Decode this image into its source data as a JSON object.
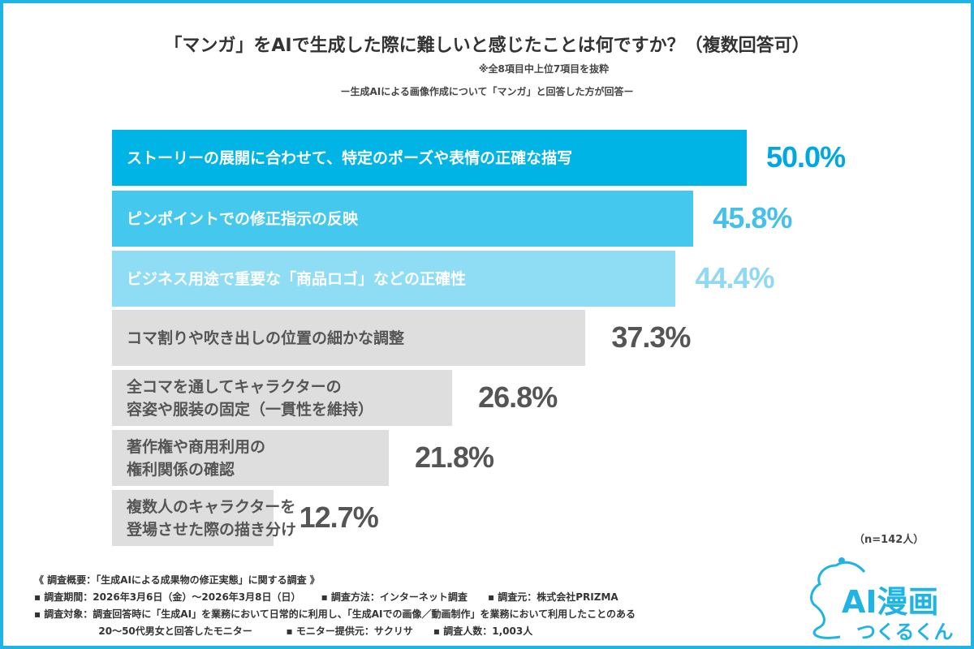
{
  "title": "「マンガ」をAIで生成した際に難しいと感じたことは何ですか？（複数回答可）",
  "subtitle_note": "※全8項目中上位7項目を抜粋",
  "subtitle_target": "ー生成AIによる画像作成について「マンガ」と回答した方が回答ー",
  "sample_size": "（n=142人）",
  "chart_data": {
    "type": "bar",
    "orientation": "horizontal",
    "title": "「マンガ」をAIで生成した際に難しいと感じたことは何ですか？（複数回答可）",
    "unit": "%",
    "xlim": [
      0,
      50
    ],
    "grid": false,
    "categories": [
      "ストーリーの展開に合わせて、特定のポーズや表情の正確な描写",
      "ピンポイントでの修正指示の反映",
      "ビジネス用途で重要な「商品ロゴ」などの正確性",
      "コマ割りや吹き出しの位置の細かな調整",
      "全コマを通してキャラクターの\n容姿や服装の固定（一貫性を維持）",
      "著作権や商用利用の\n権利関係の確認",
      "複数人のキャラクターを\n登場させた際の描き分け"
    ],
    "values": [
      50.0,
      45.8,
      44.4,
      37.3,
      26.8,
      21.8,
      12.7
    ],
    "labels": [
      "50.0%",
      "45.8%",
      "44.4%",
      "37.3%",
      "26.8%",
      "21.8%",
      "12.7%"
    ],
    "bar_colors": [
      "#00b4e6",
      "#45c8ee",
      "#8fdcf5",
      "#dedede",
      "#dedede",
      "#dedede",
      "#dedede"
    ],
    "text_colors": [
      "#ffffff",
      "#ffffff",
      "#ffffff",
      "#555555",
      "#555555",
      "#555555",
      "#555555"
    ],
    "value_colors": [
      "#00a8e0",
      "#45c0ea",
      "#90d8f3",
      "#555555",
      "#555555",
      "#555555",
      "#555555"
    ]
  },
  "notes": [
    "《 調査概要：「生成AIによる成果物の修正実態」に関する調査 》",
    "▪ 調査期間：2026年3月6日（金）〜2026年3月8日（日）      ▪ 調査方法：インターネット調査      ▪ 調査元：株式会社PRIZMA",
    "▪ 調査対象：調査回答時に「生成AI」を業務において日常的に利用し、「生成AIでの画像／動画制作」を業務において利用したことのある",
    "                   20〜50代男女と回答したモニター          ▪ モニター提供元：サクリサ      ▪ 調査人数：1,003人"
  ],
  "logo": {
    "line1": "AI漫画",
    "line2": "つくるくん",
    "color": "#1fb4e4"
  },
  "frame_color": "#1fb4e4"
}
